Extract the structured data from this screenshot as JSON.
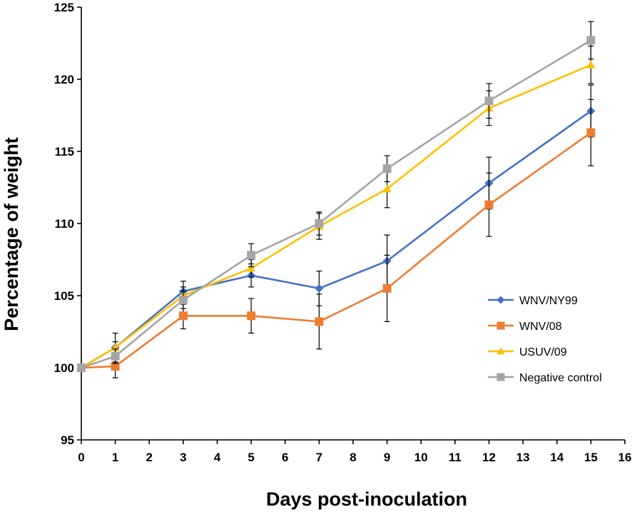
{
  "chart_data": {
    "type": "line",
    "title": "",
    "xlabel": "Days post-inoculation",
    "ylabel": "Percentage of weight",
    "xlim": [
      0,
      16
    ],
    "ylim": [
      95,
      125
    ],
    "xticks": [
      0,
      1,
      2,
      3,
      4,
      5,
      6,
      7,
      8,
      9,
      10,
      11,
      12,
      13,
      14,
      15,
      16
    ],
    "yticks": [
      95,
      100,
      105,
      110,
      115,
      120,
      125
    ],
    "grid": false,
    "legend_position": "bottom-right",
    "x": [
      0,
      1,
      3,
      5,
      7,
      9,
      12,
      15
    ],
    "series": [
      {
        "name": "WNV/NY99",
        "color": "#4472C4",
        "marker": "diamond",
        "values": [
          100,
          101.4,
          105.3,
          106.4,
          105.5,
          107.4,
          112.8,
          117.8
        ],
        "errors": [
          0,
          0.4,
          0.7,
          0.8,
          1.2,
          1.8,
          1.8,
          1.8
        ]
      },
      {
        "name": "WNV/08",
        "color": "#ED7D31",
        "marker": "square",
        "values": [
          100,
          100.1,
          103.6,
          103.6,
          103.2,
          105.5,
          111.3,
          116.3
        ],
        "errors": [
          0,
          0.8,
          0.9,
          1.2,
          1.9,
          2.3,
          2.2,
          2.3
        ]
      },
      {
        "name": "USUV/09",
        "color": "#FFC000",
        "marker": "triangle",
        "values": [
          100,
          101.4,
          105.0,
          106.9,
          109.8,
          112.4,
          118.0,
          121.0
        ],
        "errors": [
          0,
          1.0,
          0.6,
          0.6,
          0.9,
          1.3,
          1.2,
          1.3
        ]
      },
      {
        "name": "Negative control",
        "color": "#A5A5A5",
        "marker": "square",
        "values": [
          100,
          100.8,
          104.7,
          107.8,
          110.0,
          113.8,
          118.5,
          122.7
        ],
        "errors": [
          0,
          0.5,
          0.6,
          0.8,
          0.8,
          0.9,
          1.2,
          1.3
        ]
      }
    ]
  }
}
